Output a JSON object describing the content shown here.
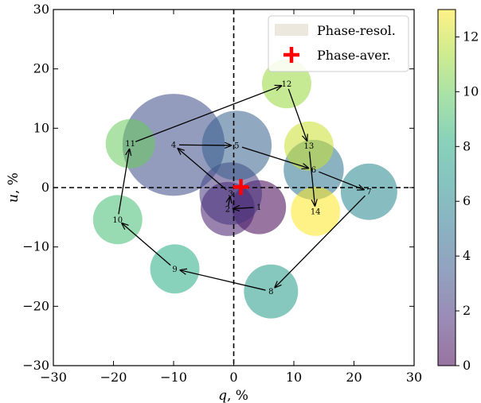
{
  "chart_data": {
    "type": "scatter",
    "xlabel_var": "q",
    "xlabel_unit": ", %",
    "ylabel_var": "u",
    "ylabel_unit": ", %",
    "xlim": [
      -30,
      30
    ],
    "ylim": [
      -30,
      30
    ],
    "xticks": [
      -30,
      -20,
      -10,
      0,
      10,
      20,
      30
    ],
    "yticks": [
      -30,
      -20,
      -10,
      0,
      10,
      20,
      30
    ],
    "xtick_labels": [
      "−30",
      "−20",
      "−10",
      "0",
      "10",
      "20",
      "30"
    ],
    "ytick_labels": [
      "−30",
      "−20",
      "−10",
      "0",
      "10",
      "20",
      "30"
    ],
    "grid": false,
    "legend_position": "top-right",
    "legend": [
      "Phase-resol.",
      "Phase-aver."
    ],
    "colorbar": {
      "min": 0,
      "max": 13,
      "ticks": [
        0,
        2,
        4,
        6,
        8,
        10,
        12
      ],
      "tick_labels": [
        "0",
        "2",
        "4",
        "6",
        "8",
        "10",
        "12"
      ],
      "colormap": "viridis"
    },
    "phase_resolved": [
      {
        "label": "1",
        "q": 4.2,
        "u": -3.3,
        "radius": 4.5
      },
      {
        "label": "2",
        "q": -1.0,
        "u": -3.6,
        "radius": 4.5
      },
      {
        "label": "3",
        "q": -0.5,
        "u": -1.0,
        "radius": 5.2
      },
      {
        "label": "4",
        "q": -10.0,
        "u": 7.2,
        "radius": 8.5
      },
      {
        "label": "5",
        "q": 0.5,
        "u": 7.1,
        "radius": 5.8
      },
      {
        "label": "6",
        "q": 13.3,
        "u": 3.0,
        "radius": 5.0
      },
      {
        "label": "7",
        "q": 22.5,
        "u": -0.7,
        "radius": 4.7
      },
      {
        "label": "8",
        "q": 6.2,
        "u": -17.5,
        "radius": 4.5
      },
      {
        "label": "9",
        "q": -9.8,
        "u": -13.7,
        "radius": 4.1
      },
      {
        "label": "10",
        "q": -19.3,
        "u": -5.4,
        "radius": 4.1
      },
      {
        "label": "11",
        "q": -17.2,
        "u": 7.4,
        "radius": 4.1
      },
      {
        "label": "12",
        "q": 8.8,
        "u": 17.5,
        "radius": 4.1
      },
      {
        "label": "13",
        "q": 12.5,
        "u": 7.0,
        "radius": 4.1
      },
      {
        "label": "14",
        "q": 13.6,
        "u": -4.0,
        "radius": 4.1
      }
    ],
    "phase_averaged": {
      "q": 1.2,
      "u": 0.1
    },
    "path_order": [
      "1",
      "2",
      "3",
      "4",
      "5",
      "6",
      "7",
      "8",
      "9",
      "10",
      "11",
      "12",
      "13",
      "14"
    ]
  }
}
